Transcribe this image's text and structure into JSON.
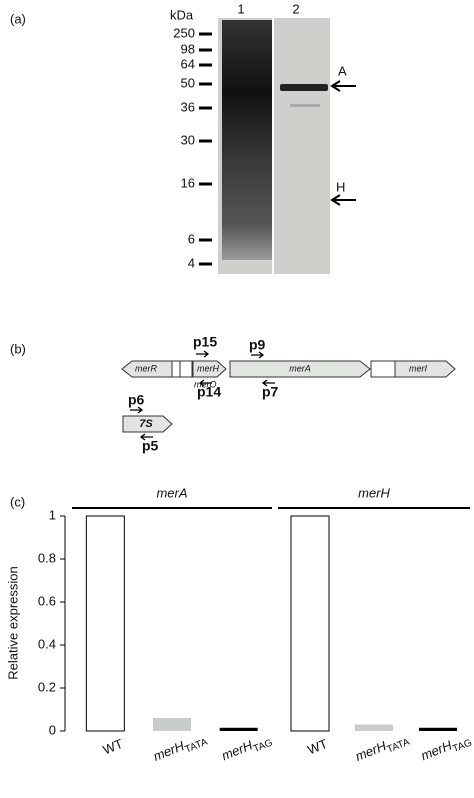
{
  "panel_a": {
    "label": "(a)",
    "unit": "kDa",
    "lanes": [
      "1",
      "2"
    ],
    "markers": [
      250,
      98,
      64,
      50,
      36,
      30,
      16,
      6,
      4
    ],
    "arrows": [
      "A",
      "H"
    ]
  },
  "panel_b": {
    "label": "(b)",
    "genes": [
      "merR",
      "merH",
      "merA",
      "merI"
    ],
    "operator": "merO",
    "promoter": "7S",
    "primers": [
      "p15",
      "p14",
      "p9",
      "p7",
      "p6",
      "p5"
    ]
  },
  "panel_c": {
    "label": "(c)"
  },
  "chart_data": {
    "type": "bar",
    "ylabel": "Relative expression",
    "categories": [
      "WT",
      "merH",
      "merH"
    ],
    "category_subscripts": [
      null,
      "TATA",
      "TAG"
    ],
    "bar_colors": [
      "#ffffff",
      "#c8ccc8",
      "#000000"
    ],
    "series": [
      {
        "name": "merA",
        "values": [
          1,
          0.06,
          0.015
        ]
      },
      {
        "name": "merH",
        "values": [
          1,
          0.03,
          0.015
        ]
      }
    ],
    "ylim": [
      0,
      1
    ],
    "yticks": [
      0,
      0.2,
      0.4,
      0.6,
      0.8,
      1
    ]
  }
}
